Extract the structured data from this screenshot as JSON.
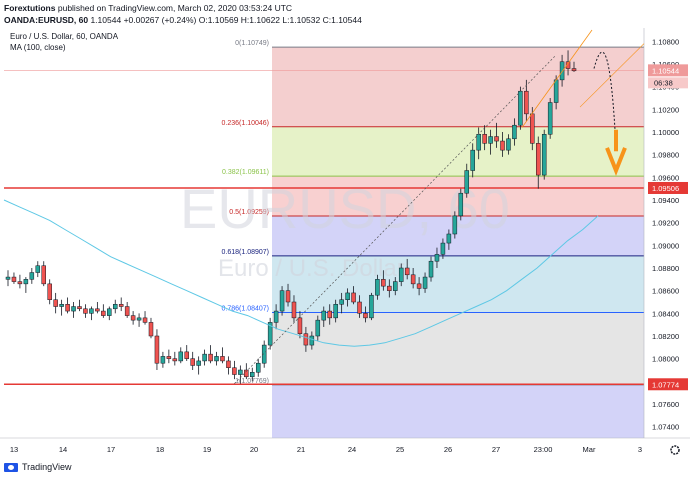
{
  "header": {
    "publisher": "Forextutions",
    "published_text": "published on TradingView.com, March 02, 2020 03:53:24 UTC",
    "symbol_line": "OANDA:EURUSD, 60",
    "price": "1.10544",
    "change": "+0.00267 (+0.24%)",
    "open": "O:1.10569",
    "high": "H:1.10622",
    "low": "L:1.10532",
    "close": "C:1.10544"
  },
  "legend": {
    "title": "Euro / U.S. Dollar, 60, OANDA",
    "ma": "MA (100, close)"
  },
  "watermark": {
    "main": "EURUSD, 60",
    "sub": "Euro / U.S. Dollar"
  },
  "footer": {
    "logo_text": "TradingView"
  },
  "colors": {
    "up": "#26a69a",
    "down": "#ef5350",
    "candle_body_up": "#ffffff",
    "candle_border": "#131722",
    "ma_line": "#5ec8e5",
    "hline": "#e53935",
    "arrow": "#f7931a",
    "trend": "#f7931a"
  },
  "fib_levels": [
    {
      "label": "0(1.10749)",
      "price": 1.10749,
      "color": "#787b86"
    },
    {
      "label": "0.236(1.10046)",
      "price": 1.10046,
      "color": "#c62828"
    },
    {
      "label": "0.382(1.09611)",
      "price": 1.09611,
      "color": "#8bc34a"
    },
    {
      "label": "0.5(1.09259)",
      "price": 1.09259,
      "color": "#c62828"
    },
    {
      "label": "0.618(1.08907)",
      "price": 1.08907,
      "color": "#1a237e"
    },
    {
      "label": "0.786(1.08407)",
      "price": 1.08407,
      "color": "#2962ff"
    },
    {
      "label": "1(1.07769)",
      "price": 1.07769,
      "color": "#787b86"
    }
  ],
  "fib_fills": [
    "#f4cfcf",
    "#e6f2c8",
    "#f8d0d0",
    "#d3d3f8",
    "#cfe7f0",
    "#e5e5e5",
    "#d3d3f8"
  ],
  "hlines": [
    {
      "price": 1.09506,
      "label": "1.09506"
    },
    {
      "price": 1.07774,
      "label": "1.07774"
    }
  ],
  "price_badges": [
    {
      "label": "1.10544"
    },
    {
      "label": "06:38"
    }
  ],
  "y_axis": {
    "ticks": [
      "1.10800",
      "1.10600",
      "1.10400",
      "1.10200",
      "1.10000",
      "1.09800",
      "1.09600",
      "1.09400",
      "1.09200",
      "1.09000",
      "1.08800",
      "1.08600",
      "1.08400",
      "1.08200",
      "1.08000",
      "1.07800",
      "1.07600",
      "1.07400"
    ],
    "min": 1.073,
    "max": 1.109
  },
  "x_axis": {
    "ticks": [
      "13",
      "14",
      "17",
      "18",
      "19",
      "20",
      "21",
      "24",
      "25",
      "26",
      "27",
      "23:00",
      "Mar",
      "3"
    ]
  },
  "chart_data": {
    "type": "candlestick",
    "symbol": "EURUSD",
    "interval": "60",
    "candles": [
      [
        1.087,
        1.0878,
        1.0864,
        1.0872
      ],
      [
        1.0872,
        1.0876,
        1.0866,
        1.0868
      ],
      [
        1.0868,
        1.0874,
        1.0862,
        1.0866
      ],
      [
        1.0866,
        1.0872,
        1.0858,
        1.087
      ],
      [
        1.087,
        1.088,
        1.0866,
        1.0876
      ],
      [
        1.0876,
        1.0886,
        1.0872,
        1.0882
      ],
      [
        1.0882,
        1.0886,
        1.0864,
        1.0866
      ],
      [
        1.0866,
        1.087,
        1.0848,
        1.0852
      ],
      [
        1.0852,
        1.0858,
        1.084,
        1.0846
      ],
      [
        1.0846,
        1.0852,
        1.0838,
        1.0848
      ],
      [
        1.0848,
        1.0854,
        1.084,
        1.0842
      ],
      [
        1.0842,
        1.085,
        1.0836,
        1.0846
      ],
      [
        1.0846,
        1.0852,
        1.0842,
        1.0844
      ],
      [
        1.0844,
        1.0848,
        1.0836,
        1.084
      ],
      [
        1.084,
        1.0846,
        1.0834,
        1.0844
      ],
      [
        1.0844,
        1.085,
        1.084,
        1.0842
      ],
      [
        1.0842,
        1.0848,
        1.0836,
        1.0838
      ],
      [
        1.0838,
        1.0846,
        1.0834,
        1.0844
      ],
      [
        1.0844,
        1.0852,
        1.084,
        1.0848
      ],
      [
        1.0848,
        1.0854,
        1.0842,
        1.0846
      ],
      [
        1.0846,
        1.085,
        1.0836,
        1.0838
      ],
      [
        1.0838,
        1.0842,
        1.083,
        1.0834
      ],
      [
        1.0834,
        1.084,
        1.0828,
        1.0836
      ],
      [
        1.0836,
        1.0842,
        1.083,
        1.0832
      ],
      [
        1.0832,
        1.0836,
        1.0818,
        1.082
      ],
      [
        1.082,
        1.0826,
        1.079,
        1.0796
      ],
      [
        1.0796,
        1.0806,
        1.0792,
        1.0802
      ],
      [
        1.0802,
        1.0808,
        1.0796,
        1.08
      ],
      [
        1.08,
        1.0806,
        1.0794,
        1.0798
      ],
      [
        1.0798,
        1.081,
        1.0796,
        1.0806
      ],
      [
        1.0806,
        1.0812,
        1.0798,
        1.08
      ],
      [
        1.08,
        1.0806,
        1.079,
        1.0794
      ],
      [
        1.0794,
        1.0802,
        1.0786,
        1.0798
      ],
      [
        1.0798,
        1.0808,
        1.0794,
        1.0804
      ],
      [
        1.0804,
        1.0812,
        1.0796,
        1.0798
      ],
      [
        1.0798,
        1.0806,
        1.0794,
        1.0802
      ],
      [
        1.0802,
        1.081,
        1.0796,
        1.0798
      ],
      [
        1.0798,
        1.0802,
        1.0786,
        1.0792
      ],
      [
        1.0792,
        1.0798,
        1.0782,
        1.0786
      ],
      [
        1.0786,
        1.0794,
        1.0778,
        1.079
      ],
      [
        1.079,
        1.0796,
        1.0782,
        1.0784
      ],
      [
        1.0784,
        1.0792,
        1.078,
        1.0788
      ],
      [
        1.0788,
        1.08,
        1.0784,
        1.0796
      ],
      [
        1.0796,
        1.0816,
        1.0792,
        1.0812
      ],
      [
        1.0812,
        1.0836,
        1.0808,
        1.0832
      ],
      [
        1.0832,
        1.0848,
        1.0826,
        1.0842
      ],
      [
        1.0842,
        1.0864,
        1.0838,
        1.086
      ],
      [
        1.086,
        1.0866,
        1.0846,
        1.085
      ],
      [
        1.085,
        1.0856,
        1.0832,
        1.0836
      ],
      [
        1.0836,
        1.0842,
        1.0818,
        1.0822
      ],
      [
        1.0822,
        1.0828,
        1.0806,
        1.0812
      ],
      [
        1.0812,
        1.0824,
        1.0808,
        1.082
      ],
      [
        1.082,
        1.0838,
        1.0816,
        1.0834
      ],
      [
        1.0834,
        1.0846,
        1.0828,
        1.0842
      ],
      [
        1.0842,
        1.0848,
        1.083,
        1.0836
      ],
      [
        1.0836,
        1.0852,
        1.0832,
        1.0848
      ],
      [
        1.0848,
        1.0858,
        1.084,
        1.0852
      ],
      [
        1.0852,
        1.0862,
        1.0846,
        1.0858
      ],
      [
        1.0858,
        1.0864,
        1.0848,
        1.085
      ],
      [
        1.085,
        1.0856,
        1.0836,
        1.084
      ],
      [
        1.084,
        1.0846,
        1.0832,
        1.0836
      ],
      [
        1.0836,
        1.0858,
        1.0834,
        1.0856
      ],
      [
        1.0856,
        1.0874,
        1.0852,
        1.087
      ],
      [
        1.087,
        1.0878,
        1.086,
        1.0864
      ],
      [
        1.0864,
        1.087,
        1.0854,
        1.086
      ],
      [
        1.086,
        1.0872,
        1.0856,
        1.0868
      ],
      [
        1.0868,
        1.0884,
        1.0864,
        1.088
      ],
      [
        1.088,
        1.0888,
        1.087,
        1.0874
      ],
      [
        1.0874,
        1.088,
        1.0862,
        1.0866
      ],
      [
        1.0866,
        1.0872,
        1.0856,
        1.0862
      ],
      [
        1.0862,
        1.0876,
        1.0858,
        1.0872
      ],
      [
        1.0872,
        1.089,
        1.0868,
        1.0886
      ],
      [
        1.0886,
        1.0898,
        1.088,
        1.0892
      ],
      [
        1.0892,
        1.0906,
        1.0888,
        1.0902
      ],
      [
        1.0902,
        1.0914,
        1.0896,
        1.091
      ],
      [
        1.091,
        1.093,
        1.0906,
        1.0926
      ],
      [
        1.0926,
        1.095,
        1.0922,
        1.0946
      ],
      [
        1.0946,
        1.0972,
        1.0942,
        1.0966
      ],
      [
        1.0966,
        1.099,
        1.096,
        1.0984
      ],
      [
        1.0984,
        1.1004,
        1.0976,
        1.0998
      ],
      [
        1.0998,
        1.1006,
        1.0984,
        1.099
      ],
      [
        1.099,
        1.1002,
        1.098,
        1.0996
      ],
      [
        1.0996,
        1.1008,
        1.0986,
        1.0992
      ],
      [
        1.0992,
        1.1,
        1.0978,
        1.0984
      ],
      [
        1.0984,
        1.0998,
        1.098,
        1.0994
      ],
      [
        1.0994,
        1.1012,
        1.0988,
        1.1006
      ],
      [
        1.1006,
        1.104,
        1.1002,
        1.1036
      ],
      [
        1.1036,
        1.1046,
        1.101,
        1.1016
      ],
      [
        1.1016,
        1.1022,
        1.0984,
        1.099
      ],
      [
        1.099,
        1.0996,
        1.095,
        1.0962
      ],
      [
        1.0962,
        1.1002,
        1.0958,
        1.0998
      ],
      [
        1.0998,
        1.103,
        1.0994,
        1.1026
      ],
      [
        1.1026,
        1.105,
        1.102,
        1.1046
      ],
      [
        1.1046,
        1.1068,
        1.104,
        1.1062
      ],
      [
        1.1062,
        1.1072,
        1.105,
        1.1056
      ],
      [
        1.1056,
        1.1062,
        1.1053,
        1.1054
      ]
    ],
    "ma_100": [
      1.094,
      1.0934,
      1.0928,
      1.0922,
      1.0914,
      1.0906,
      1.0898,
      1.089,
      1.0884,
      1.0878,
      1.0872,
      1.0866,
      1.086,
      1.0854,
      1.0848,
      1.0842,
      1.0838,
      1.0832,
      1.0826,
      1.0822,
      1.0818,
      1.0814,
      1.0812,
      1.0811,
      1.0812,
      1.0814,
      1.0818,
      1.0822,
      1.0828,
      1.0834,
      1.084,
      1.0846,
      1.0852,
      1.086,
      1.087,
      1.088,
      1.0892,
      1.0904,
      1.0914,
      1.0926
    ]
  }
}
